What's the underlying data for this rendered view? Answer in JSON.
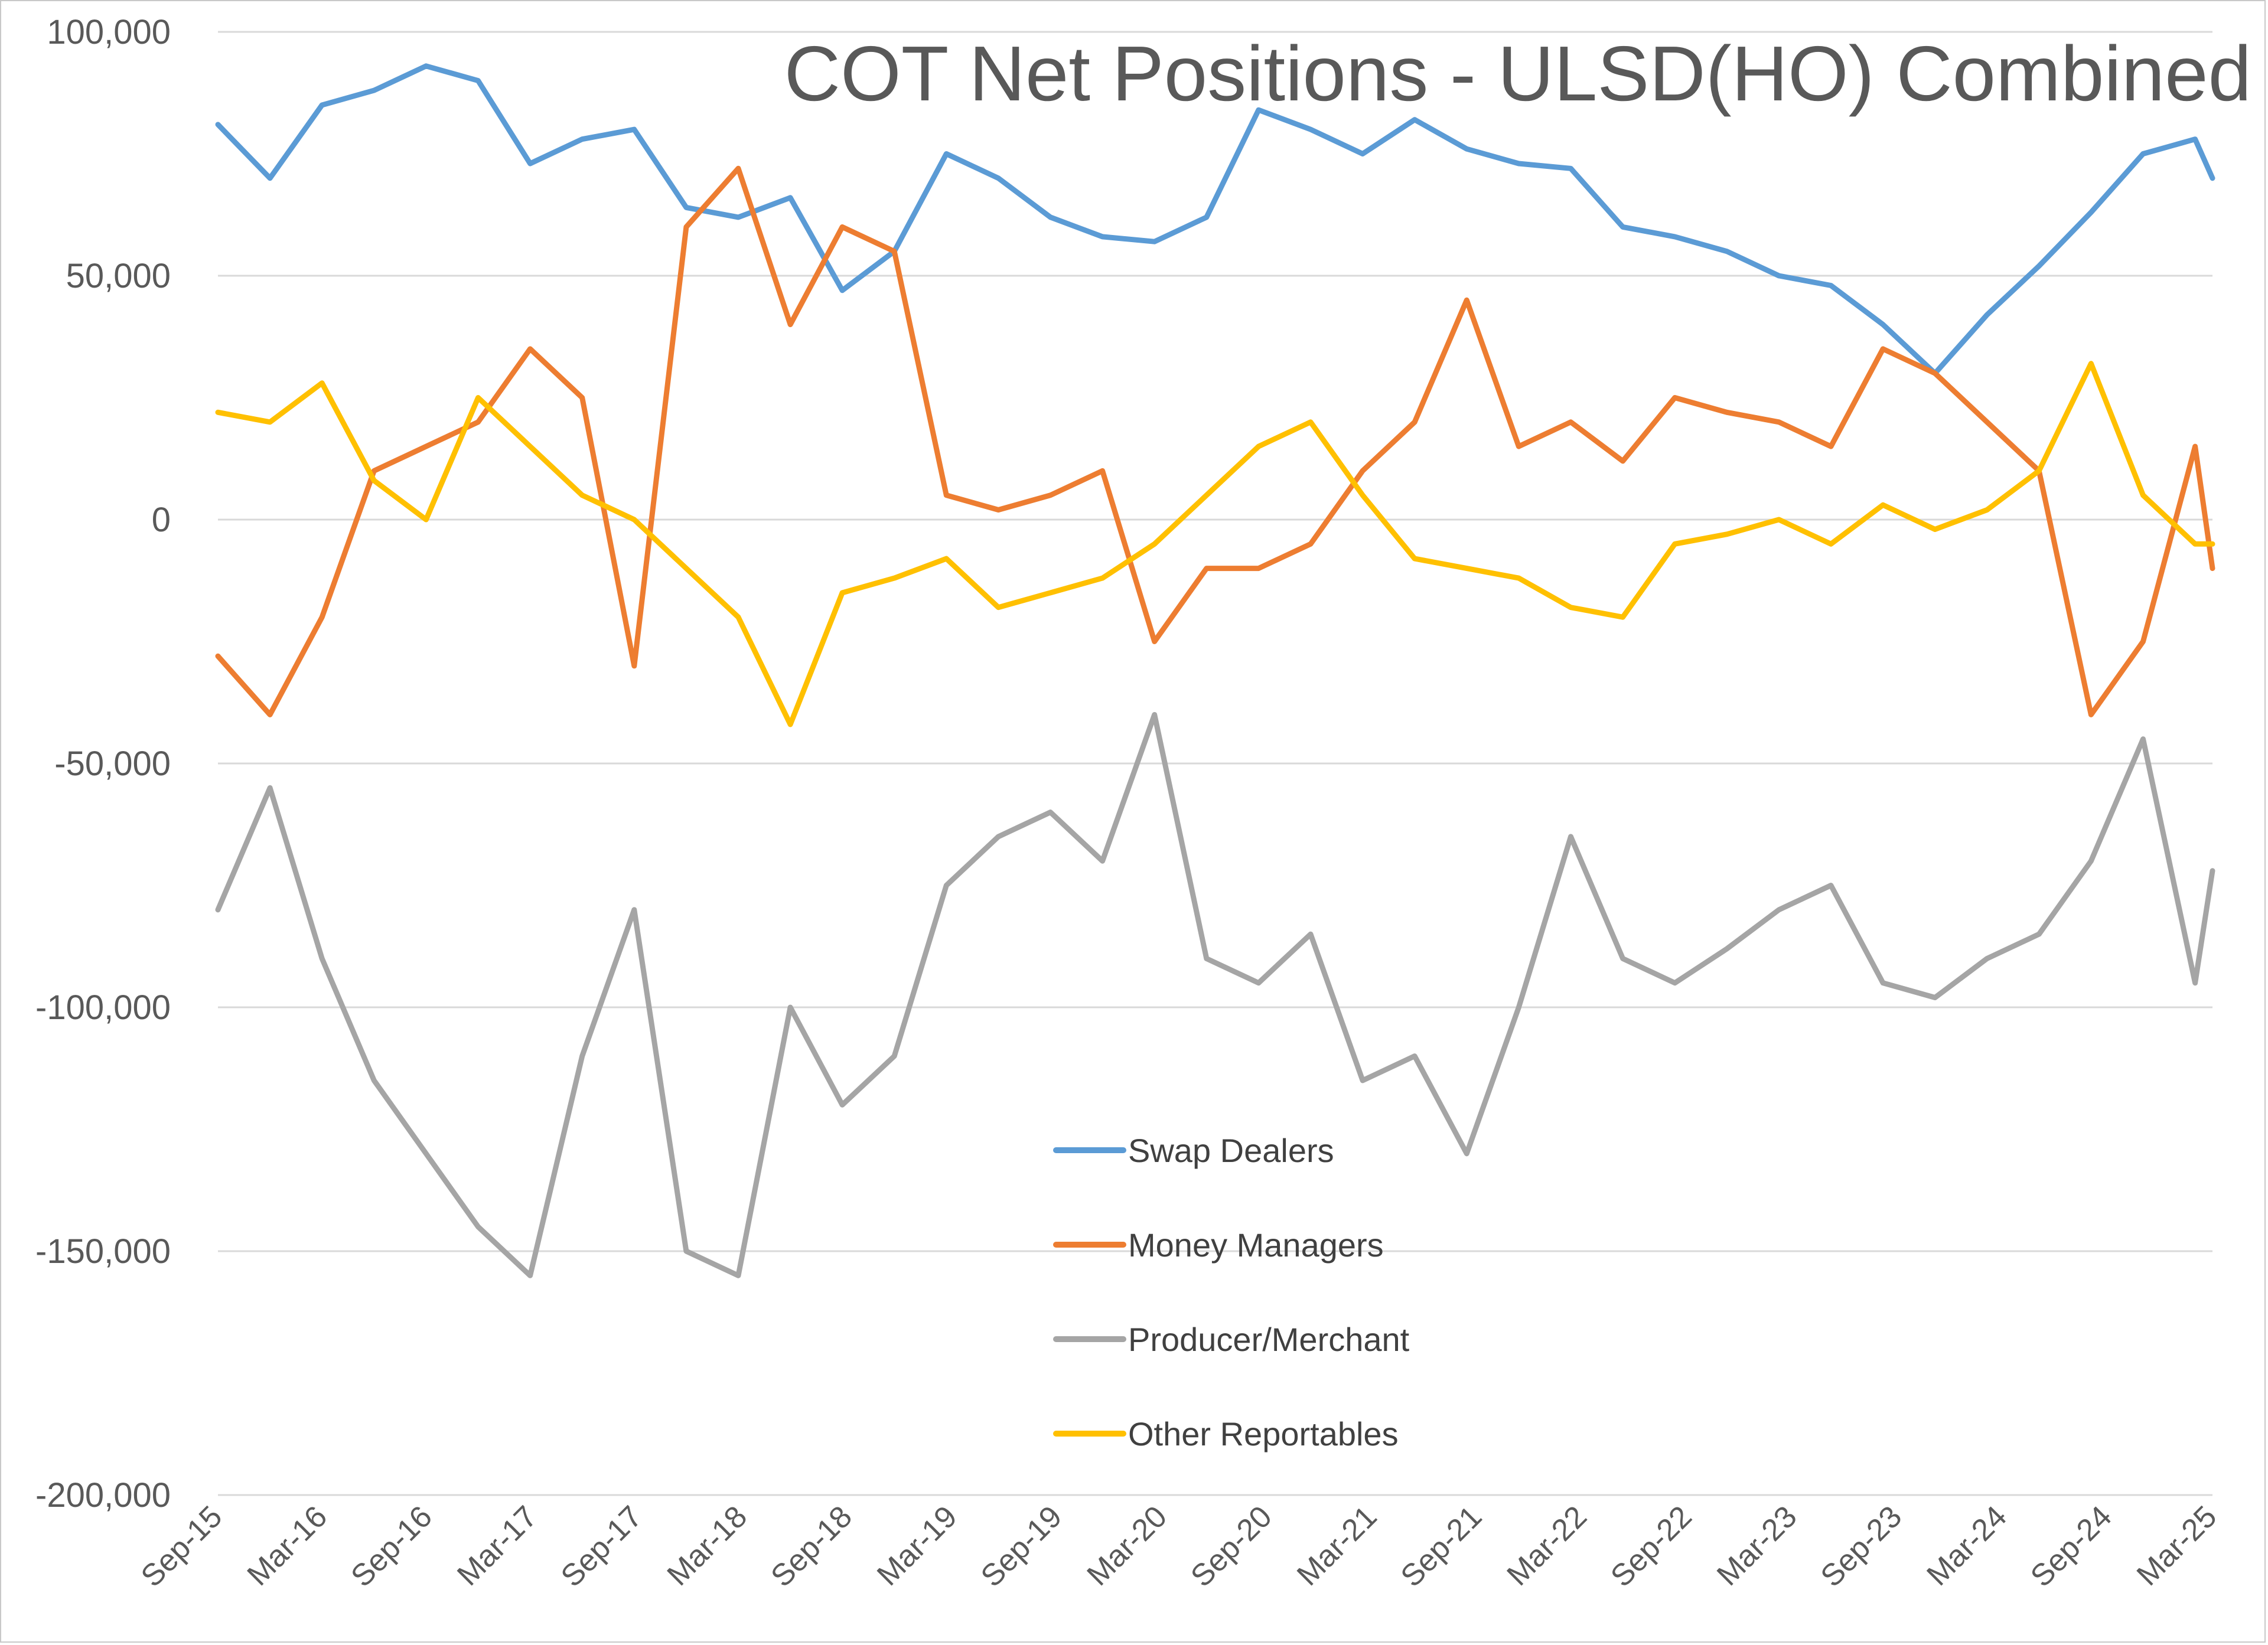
{
  "chart_data": {
    "type": "line",
    "title": "COT Net Positions - ULSD(HO) Combined",
    "xlabel": "",
    "ylabel": "",
    "ylim": [
      -200000,
      100000
    ],
    "yticks": [
      100000,
      50000,
      0,
      -50000,
      -100000,
      -150000,
      -200000
    ],
    "ytick_labels": [
      "100,000",
      "50,000",
      "0",
      "-50,000",
      "-100,000",
      "-150,000",
      "-200,000"
    ],
    "x_range": [
      "2015-09",
      "2025-04"
    ],
    "xtick_labels": [
      "Sep-15",
      "Mar-16",
      "Sep-16",
      "Mar-17",
      "Sep-17",
      "Mar-18",
      "Sep-18",
      "Mar-19",
      "Sep-19",
      "Mar-20",
      "Sep-20",
      "Mar-21",
      "Sep-21",
      "Mar-22",
      "Sep-22",
      "Mar-23",
      "Sep-23",
      "Mar-24",
      "Sep-24",
      "Mar-25"
    ],
    "grid": "horizontal",
    "legend_position": "center-bottom",
    "x": [
      "2015-09",
      "2015-12",
      "2016-03",
      "2016-06",
      "2016-09",
      "2016-12",
      "2017-03",
      "2017-06",
      "2017-09",
      "2017-12",
      "2018-03",
      "2018-06",
      "2018-09",
      "2018-12",
      "2019-03",
      "2019-06",
      "2019-09",
      "2019-12",
      "2020-03",
      "2020-06",
      "2020-09",
      "2020-12",
      "2021-03",
      "2021-06",
      "2021-09",
      "2021-12",
      "2022-03",
      "2022-06",
      "2022-09",
      "2022-12",
      "2023-03",
      "2023-06",
      "2023-09",
      "2023-12",
      "2024-03",
      "2024-06",
      "2024-09",
      "2024-12",
      "2025-03",
      "2025-04"
    ],
    "series": [
      {
        "name": "Swap Dealers",
        "color": "#5b9bd5",
        "values": [
          81000,
          70000,
          85000,
          88000,
          93000,
          90000,
          73000,
          78000,
          80000,
          64000,
          62000,
          66000,
          47000,
          55000,
          75000,
          70000,
          62000,
          58000,
          57000,
          62000,
          84000,
          80000,
          75000,
          82000,
          76000,
          73000,
          72000,
          60000,
          58000,
          55000,
          50000,
          48000,
          40000,
          30000,
          42000,
          52000,
          63000,
          75000,
          78000,
          70000
        ]
      },
      {
        "name": "Money Managers",
        "color": "#ed7d31",
        "values": [
          -28000,
          -40000,
          -20000,
          10000,
          15000,
          20000,
          35000,
          25000,
          -30000,
          60000,
          72000,
          40000,
          60000,
          55000,
          5000,
          2000,
          5000,
          10000,
          -25000,
          -10000,
          -10000,
          -5000,
          10000,
          20000,
          45000,
          15000,
          20000,
          12000,
          25000,
          22000,
          20000,
          15000,
          35000,
          30000,
          20000,
          10000,
          -40000,
          -25000,
          15000,
          -10000
        ]
      },
      {
        "name": "Producer/Merchant",
        "color": "#a5a5a5",
        "values": [
          -80000,
          -55000,
          -90000,
          -115000,
          -130000,
          -145000,
          -155000,
          -110000,
          -80000,
          -150000,
          -155000,
          -100000,
          -120000,
          -110000,
          -75000,
          -65000,
          -60000,
          -70000,
          -40000,
          -90000,
          -95000,
          -85000,
          -115000,
          -110000,
          -130000,
          -100000,
          -65000,
          -90000,
          -95000,
          -88000,
          -80000,
          -75000,
          -95000,
          -98000,
          -90000,
          -85000,
          -70000,
          -45000,
          -95000,
          -72000
        ]
      },
      {
        "name": "Other Reportables",
        "color": "#ffc000",
        "values": [
          22000,
          20000,
          28000,
          8000,
          0,
          25000,
          15000,
          5000,
          0,
          -10000,
          -20000,
          -42000,
          -15000,
          -12000,
          -8000,
          -18000,
          -15000,
          -12000,
          -5000,
          5000,
          15000,
          20000,
          5000,
          -8000,
          -10000,
          -12000,
          -18000,
          -20000,
          -5000,
          -3000,
          0,
          -5000,
          3000,
          -2000,
          2000,
          10000,
          32000,
          5000,
          -5000,
          -5000
        ]
      }
    ]
  }
}
